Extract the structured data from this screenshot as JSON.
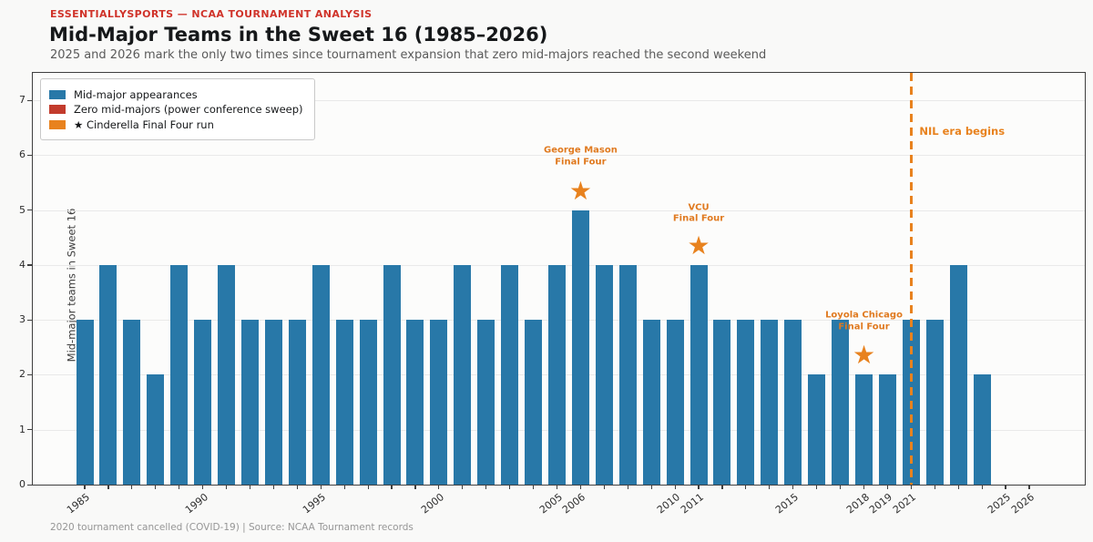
{
  "header": {
    "kicker": "ESSENTIALLYSPORTS — NCAA TOURNAMENT ANALYSIS",
    "title": "Mid-Major Teams in the Sweet 16 (1985–2026)",
    "subtitle": "2025 and 2026 mark the only two times since tournament expansion that zero mid-majors reached the second weekend"
  },
  "legend": {
    "items": [
      {
        "swatch": "#2878a8",
        "label": "Mid-major appearances"
      },
      {
        "swatch": "#c23b2c",
        "label": "Zero mid-majors (power conference sweep)"
      },
      {
        "swatch": "#e8821e",
        "label": "★  Cinderella Final Four run"
      }
    ]
  },
  "chart_data": {
    "type": "bar",
    "title": "Mid-Major Teams in the Sweet 16 (1985–2026)",
    "xlabel": "",
    "ylabel": "Mid-major teams in Sweet 16",
    "ylim": [
      0,
      7.5
    ],
    "yticks": [
      0,
      1,
      2,
      3,
      4,
      5,
      6,
      7
    ],
    "grid": "horizontal",
    "legend_position": "upper-left",
    "bar_color": "#2878a8",
    "categories": [
      1985,
      1986,
      1987,
      1988,
      1989,
      1990,
      1991,
      1992,
      1993,
      1994,
      1995,
      1996,
      1997,
      1998,
      1999,
      2000,
      2001,
      2002,
      2003,
      2004,
      2005,
      2006,
      2007,
      2008,
      2009,
      2010,
      2011,
      2012,
      2013,
      2014,
      2015,
      2016,
      2017,
      2018,
      2019,
      2021,
      2022,
      2023,
      2024,
      2025,
      2026
    ],
    "values": [
      3,
      4,
      3,
      2,
      4,
      3,
      4,
      3,
      3,
      3,
      4,
      3,
      3,
      4,
      3,
      3,
      4,
      3,
      4,
      3,
      4,
      5,
      4,
      4,
      3,
      3,
      4,
      3,
      3,
      3,
      3,
      2,
      3,
      2,
      2,
      3,
      3,
      4,
      2,
      0,
      0
    ],
    "shown_x_tick_labels": [
      1985,
      1990,
      1995,
      2000,
      2005,
      2006,
      2010,
      2011,
      2015,
      2018,
      2019,
      2021,
      2025,
      2026
    ],
    "annotations": [
      {
        "lines": [
          "George Mason",
          "Final Four"
        ],
        "year": 2006,
        "star_y": 5.35,
        "text_y": 5.97
      },
      {
        "lines": [
          "VCU",
          "Final Four"
        ],
        "year": 2011,
        "star_y": 4.35,
        "text_y": 4.93
      },
      {
        "lines": [
          "Loyola Chicago",
          "Final Four"
        ],
        "year": 2018,
        "star_y": 2.35,
        "text_y": 2.97
      }
    ],
    "vline": {
      "year": 2021,
      "label": "NIL era begins",
      "style": "dashed",
      "color": "#e8821e"
    },
    "star_color": "#e8821e",
    "annotation_color": "#e07a20"
  },
  "footer": {
    "text": "2020 tournament cancelled (COVID-19)  |  Source: NCAA Tournament records"
  }
}
